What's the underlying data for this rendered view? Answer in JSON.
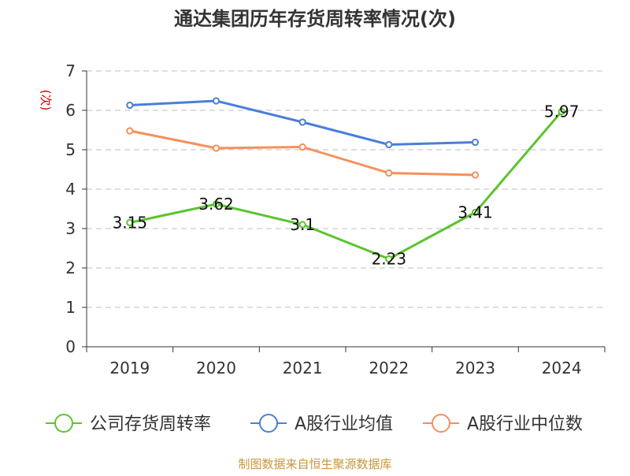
{
  "chart_data": {
    "type": "line",
    "title": "通达集团历年存货周转率情况(次)",
    "ylabel": "(次)",
    "xlabel": "",
    "categories": [
      "2019",
      "2020",
      "2021",
      "2022",
      "2023",
      "2024"
    ],
    "ylim": [
      0,
      7
    ],
    "yticks": [
      0,
      1,
      2,
      3,
      4,
      5,
      6,
      7
    ],
    "grid": true,
    "legend_position": "bottom",
    "series": [
      {
        "name": "公司存货周转率",
        "color": "#5cc42f",
        "values": [
          3.15,
          3.62,
          3.1,
          2.23,
          3.41,
          5.97
        ],
        "data_labels": [
          "3.15",
          "3.62",
          "3.1",
          "2.23",
          "3.41",
          "5.97"
        ]
      },
      {
        "name": "A股行业均值",
        "color": "#4a7fd8",
        "values": [
          6.13,
          6.24,
          5.7,
          5.13,
          5.19,
          null
        ]
      },
      {
        "name": "A股行业中位数",
        "color": "#f5905a",
        "values": [
          5.48,
          5.04,
          5.07,
          4.41,
          4.36,
          null
        ]
      }
    ]
  },
  "source": "制图数据来自恒生聚源数据库",
  "colors": {
    "title": "#333333",
    "axis": "#333333",
    "grid": "#cccccc",
    "ylabel": "#cc0000",
    "source": "#c8963c"
  }
}
